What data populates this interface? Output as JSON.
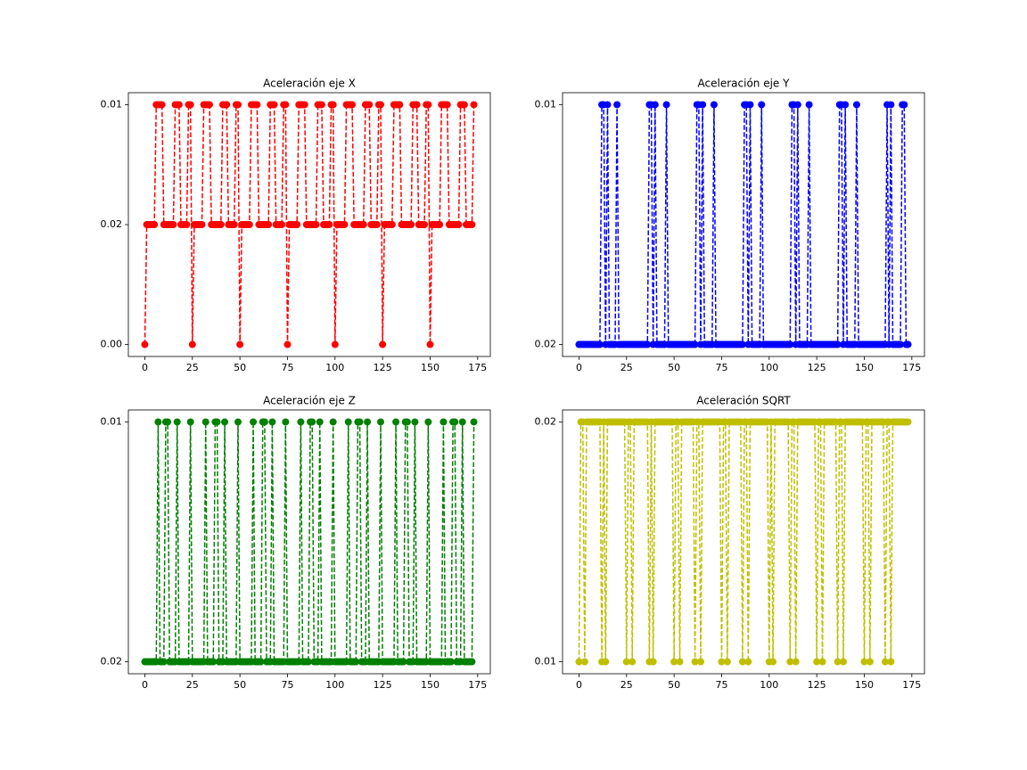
{
  "chart_data": [
    {
      "type": "line",
      "title": "Aceleración eje X",
      "color": "#ff0000",
      "xlim": [
        -8.65,
        181.65
      ],
      "xticks": [
        0,
        25,
        50,
        75,
        100,
        125,
        150,
        175
      ],
      "yticks": [
        {
          "value": 0,
          "label": "0.00"
        },
        0.02,
        0.01
      ],
      "values": [
        0,
        0.02,
        0.02,
        0.02,
        0.02,
        0.02,
        0.01,
        0.01,
        0.01,
        0.01,
        0.02,
        0.02,
        0.02,
        0.02,
        0.02,
        0.02,
        0.01,
        0.01,
        0.01,
        0.02,
        0.02,
        0.02,
        0.02,
        0.01,
        0.01,
        0,
        0.02,
        0.02,
        0.02,
        0.02,
        0.02,
        0.01,
        0.01,
        0.01,
        0.01,
        0.02,
        0.02,
        0.02,
        0.02,
        0.02,
        0.02,
        0.01,
        0.01,
        0.01,
        0.02,
        0.02,
        0.02,
        0.02,
        0.01,
        0.01,
        0,
        0.02,
        0.02,
        0.02,
        0.02,
        0.02,
        0.01,
        0.01,
        0.01,
        0.01,
        0.02,
        0.02,
        0.02,
        0.02,
        0.02,
        0.02,
        0.01,
        0.01,
        0.01,
        0.02,
        0.02,
        0.02,
        0.02,
        0.01,
        0.01,
        0,
        0.02,
        0.02,
        0.02,
        0.02,
        0.02,
        0.01,
        0.01,
        0.01,
        0.01,
        0.02,
        0.02,
        0.02,
        0.02,
        0.02,
        0.02,
        0.01,
        0.01,
        0.01,
        0.02,
        0.02,
        0.02,
        0.02,
        0.01,
        0.01,
        0,
        0.02,
        0.02,
        0.02,
        0.02,
        0.02,
        0.01,
        0.01,
        0.01,
        0.01,
        0.02,
        0.02,
        0.02,
        0.02,
        0.02,
        0.02,
        0.01,
        0.01,
        0.01,
        0.02,
        0.02,
        0.02,
        0.02,
        0.01,
        0.01,
        0,
        0.02,
        0.02,
        0.02,
        0.02,
        0.02,
        0.01,
        0.01,
        0.01,
        0.01,
        0.02,
        0.02,
        0.02,
        0.02,
        0.02,
        0.02,
        0.01,
        0.01,
        0.01,
        0.02,
        0.02,
        0.02,
        0.02,
        0.01,
        0.01,
        0,
        0.02,
        0.02,
        0.02,
        0.02,
        0.02,
        0.01,
        0.01,
        0.01,
        0.01,
        0.02,
        0.02,
        0.02,
        0.02,
        0.02,
        0.02,
        0.01,
        0.01,
        0.01,
        0.02,
        0.02,
        0.02,
        0.02,
        0.01
      ]
    },
    {
      "type": "line",
      "title": "Aceleración eje Y",
      "color": "#0000ff",
      "xlim": [
        -8.65,
        181.65
      ],
      "xticks": [
        0,
        25,
        50,
        75,
        100,
        125,
        150,
        175
      ],
      "yticks": [
        0.02,
        0.01
      ],
      "values": [
        0.02,
        0.02,
        0.02,
        0.02,
        0.02,
        0.02,
        0.02,
        0.02,
        0.02,
        0.02,
        0.02,
        0.02,
        0.01,
        0.01,
        0.02,
        0.01,
        0.02,
        0.02,
        0.02,
        0.02,
        0.01,
        0.02,
        0.02,
        0.02,
        0.02,
        0.02,
        0.02,
        0.02,
        0.02,
        0.02,
        0.02,
        0.02,
        0.02,
        0.02,
        0.02,
        0.02,
        0.02,
        0.01,
        0.01,
        0.02,
        0.01,
        0.02,
        0.02,
        0.02,
        0.02,
        0.02,
        0.01,
        0.02,
        0.02,
        0.02,
        0.02,
        0.02,
        0.02,
        0.02,
        0.02,
        0.02,
        0.02,
        0.02,
        0.02,
        0.02,
        0.02,
        0.02,
        0.01,
        0.01,
        0.02,
        0.01,
        0.02,
        0.02,
        0.02,
        0.02,
        0.02,
        0.01,
        0.02,
        0.02,
        0.02,
        0.02,
        0.02,
        0.02,
        0.02,
        0.02,
        0.02,
        0.02,
        0.02,
        0.02,
        0.02,
        0.02,
        0.02,
        0.01,
        0.01,
        0.02,
        0.01,
        0.02,
        0.02,
        0.02,
        0.02,
        0.02,
        0.01,
        0.02,
        0.02,
        0.02,
        0.02,
        0.02,
        0.02,
        0.02,
        0.02,
        0.02,
        0.02,
        0.02,
        0.02,
        0.02,
        0.02,
        0.02,
        0.01,
        0.01,
        0.02,
        0.01,
        0.02,
        0.02,
        0.02,
        0.02,
        0.02,
        0.01,
        0.02,
        0.02,
        0.02,
        0.02,
        0.02,
        0.02,
        0.02,
        0.02,
        0.02,
        0.02,
        0.02,
        0.02,
        0.02,
        0.02,
        0.02,
        0.01,
        0.01,
        0.02,
        0.01,
        0.02,
        0.02,
        0.02,
        0.02,
        0.02,
        0.01,
        0.02,
        0.02,
        0.02,
        0.02,
        0.02,
        0.02,
        0.02,
        0.02,
        0.02,
        0.02,
        0.02,
        0.02,
        0.02,
        0.02,
        0.02,
        0.01,
        0.02,
        0.01,
        0.02,
        0.02,
        0.02,
        0.02,
        0.02,
        0.01,
        0.01,
        0.02,
        0.02
      ]
    },
    {
      "type": "line",
      "title": "Aceleración eje Z",
      "color": "#008000",
      "xlim": [
        -8.65,
        181.65
      ],
      "xticks": [
        0,
        25,
        50,
        75,
        100,
        125,
        150,
        175
      ],
      "yticks": [
        0.02,
        0.01
      ],
      "values": [
        0.02,
        0.02,
        0.02,
        0.02,
        0.02,
        0.02,
        0.02,
        0.01,
        0.02,
        0.02,
        0.02,
        0.01,
        0.01,
        0.02,
        0.02,
        0.02,
        0.02,
        0.01,
        0.02,
        0.02,
        0.02,
        0.02,
        0.02,
        0.02,
        0.01,
        0.02,
        0.02,
        0.02,
        0.02,
        0.02,
        0.02,
        0.02,
        0.01,
        0.02,
        0.02,
        0.02,
        0.02,
        0.01,
        0.01,
        0.02,
        0.02,
        0.02,
        0.01,
        0.02,
        0.02,
        0.02,
        0.02,
        0.02,
        0.02,
        0.01,
        0.02,
        0.02,
        0.02,
        0.02,
        0.02,
        0.02,
        0.02,
        0.01,
        0.02,
        0.02,
        0.02,
        0.02,
        0.01,
        0.01,
        0.02,
        0.02,
        0.02,
        0.01,
        0.02,
        0.02,
        0.02,
        0.02,
        0.02,
        0.02,
        0.01,
        0.02,
        0.02,
        0.02,
        0.02,
        0.02,
        0.02,
        0.02,
        0.01,
        0.02,
        0.02,
        0.02,
        0.02,
        0.01,
        0.01,
        0.02,
        0.02,
        0.02,
        0.01,
        0.02,
        0.02,
        0.02,
        0.02,
        0.02,
        0.02,
        0.01,
        0.02,
        0.02,
        0.02,
        0.02,
        0.02,
        0.02,
        0.02,
        0.01,
        0.02,
        0.02,
        0.02,
        0.02,
        0.01,
        0.01,
        0.02,
        0.02,
        0.02,
        0.01,
        0.02,
        0.02,
        0.02,
        0.02,
        0.02,
        0.02,
        0.01,
        0.02,
        0.02,
        0.02,
        0.02,
        0.02,
        0.02,
        0.02,
        0.01,
        0.02,
        0.02,
        0.02,
        0.02,
        0.01,
        0.01,
        0.02,
        0.02,
        0.02,
        0.01,
        0.02,
        0.02,
        0.02,
        0.02,
        0.02,
        0.02,
        0.01,
        0.02,
        0.02,
        0.02,
        0.02,
        0.02,
        0.02,
        0.02,
        0.01,
        0.02,
        0.02,
        0.02,
        0.02,
        0.01,
        0.01,
        0.02,
        0.02,
        0.02,
        0.01,
        0.02,
        0.02,
        0.02,
        0.02,
        0.02,
        0.01
      ]
    },
    {
      "type": "line",
      "title": "Aceleración SQRT",
      "color": "#bfbf00",
      "xlim": [
        -8.65,
        181.65
      ],
      "xticks": [
        0,
        25,
        50,
        75,
        100,
        125,
        150,
        175
      ],
      "yticks": [
        0.01,
        0.02
      ],
      "values": [
        0.01,
        0.02,
        0.02,
        0.01,
        0.02,
        0.02,
        0.02,
        0.02,
        0.02,
        0.02,
        0.02,
        0.02,
        0.01,
        0.02,
        0.01,
        0.02,
        0.02,
        0.02,
        0.02,
        0.02,
        0.02,
        0.02,
        0.02,
        0.02,
        0.02,
        0.01,
        0.02,
        0.02,
        0.01,
        0.02,
        0.02,
        0.02,
        0.02,
        0.02,
        0.02,
        0.02,
        0.02,
        0.01,
        0.02,
        0.01,
        0.02,
        0.02,
        0.02,
        0.02,
        0.02,
        0.02,
        0.02,
        0.02,
        0.02,
        0.02,
        0.01,
        0.02,
        0.02,
        0.01,
        0.02,
        0.02,
        0.02,
        0.02,
        0.02,
        0.02,
        0.02,
        0.01,
        0.02,
        0.02,
        0.01,
        0.02,
        0.02,
        0.02,
        0.02,
        0.02,
        0.02,
        0.02,
        0.02,
        0.02,
        0.02,
        0.01,
        0.02,
        0.02,
        0.01,
        0.02,
        0.02,
        0.02,
        0.02,
        0.02,
        0.02,
        0.02,
        0.01,
        0.02,
        0.02,
        0.01,
        0.02,
        0.02,
        0.02,
        0.02,
        0.02,
        0.02,
        0.02,
        0.02,
        0.02,
        0.02,
        0.01,
        0.02,
        0.01,
        0.02,
        0.02,
        0.02,
        0.02,
        0.02,
        0.02,
        0.02,
        0.02,
        0.01,
        0.02,
        0.02,
        0.01,
        0.02,
        0.02,
        0.02,
        0.02,
        0.02,
        0.02,
        0.02,
        0.02,
        0.02,
        0.02,
        0.01,
        0.02,
        0.02,
        0.01,
        0.02,
        0.02,
        0.02,
        0.02,
        0.02,
        0.02,
        0.02,
        0.01,
        0.02,
        0.02,
        0.01,
        0.02,
        0.02,
        0.02,
        0.02,
        0.02,
        0.02,
        0.02,
        0.02,
        0.02,
        0.02,
        0.01,
        0.02,
        0.02,
        0.01,
        0.02,
        0.02,
        0.02,
        0.02,
        0.02,
        0.02,
        0.02,
        0.01,
        0.02,
        0.02,
        0.01,
        0.02,
        0.02,
        0.02,
        0.02,
        0.02,
        0.02,
        0.02,
        0.02,
        0.02
      ]
    }
  ]
}
